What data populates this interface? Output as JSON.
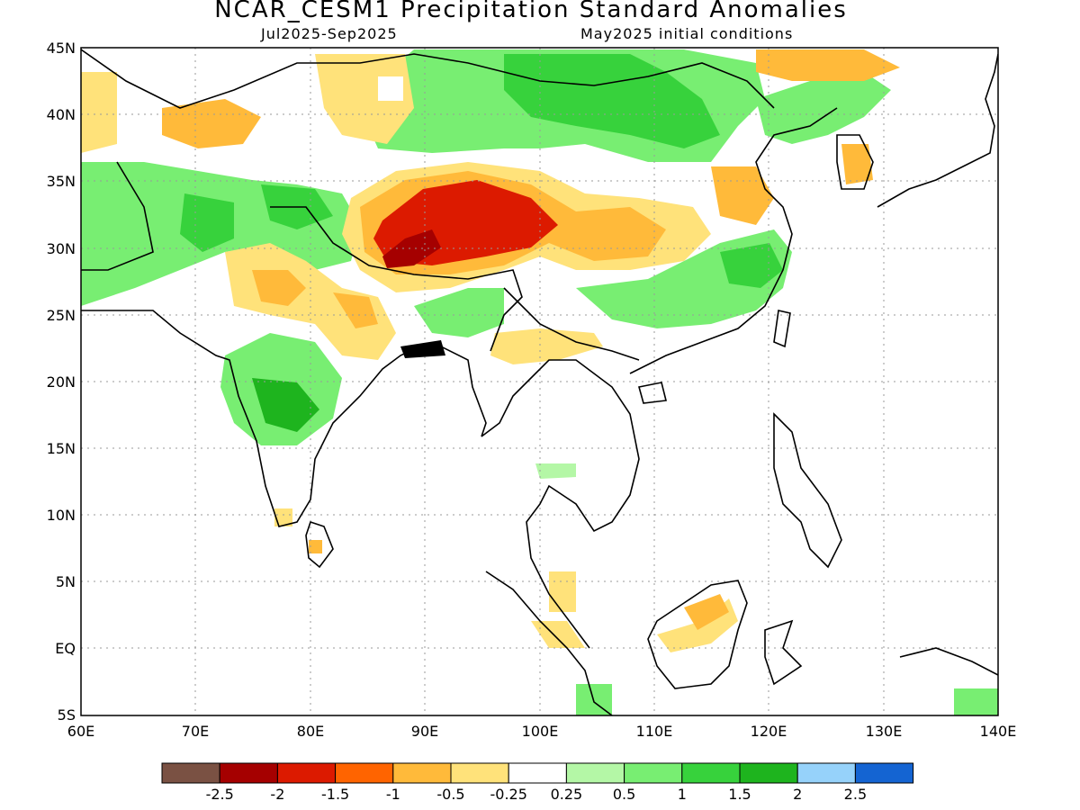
{
  "title": "NCAR_CESM1 Precipitation Standard Anomalies",
  "period": "Jul2025-Sep2025",
  "init": "May2025 initial conditions",
  "lat_labels": [
    "45N",
    "40N",
    "35N",
    "30N",
    "25N",
    "20N",
    "15N",
    "10N",
    "5N",
    "EQ",
    "5S"
  ],
  "lon_labels": [
    "60E",
    "70E",
    "80E",
    "90E",
    "100E",
    "110E",
    "120E",
    "130E",
    "140E"
  ],
  "colorbar": {
    "colors": [
      "#7a5143",
      "#a50000",
      "#dc1a00",
      "#ff6400",
      "#ffba3a",
      "#ffe27a",
      "#ffffff",
      "#b4f7a6",
      "#78ee72",
      "#37d23c",
      "#1eb41e",
      "#96d2fa",
      "#1464d2"
    ],
    "labels": [
      "-2.5",
      "-2",
      "-1.5",
      "-1",
      "-0.5",
      "-0.25",
      "0.25",
      "0.5",
      "1",
      "1.5",
      "2",
      "2.5"
    ]
  }
}
